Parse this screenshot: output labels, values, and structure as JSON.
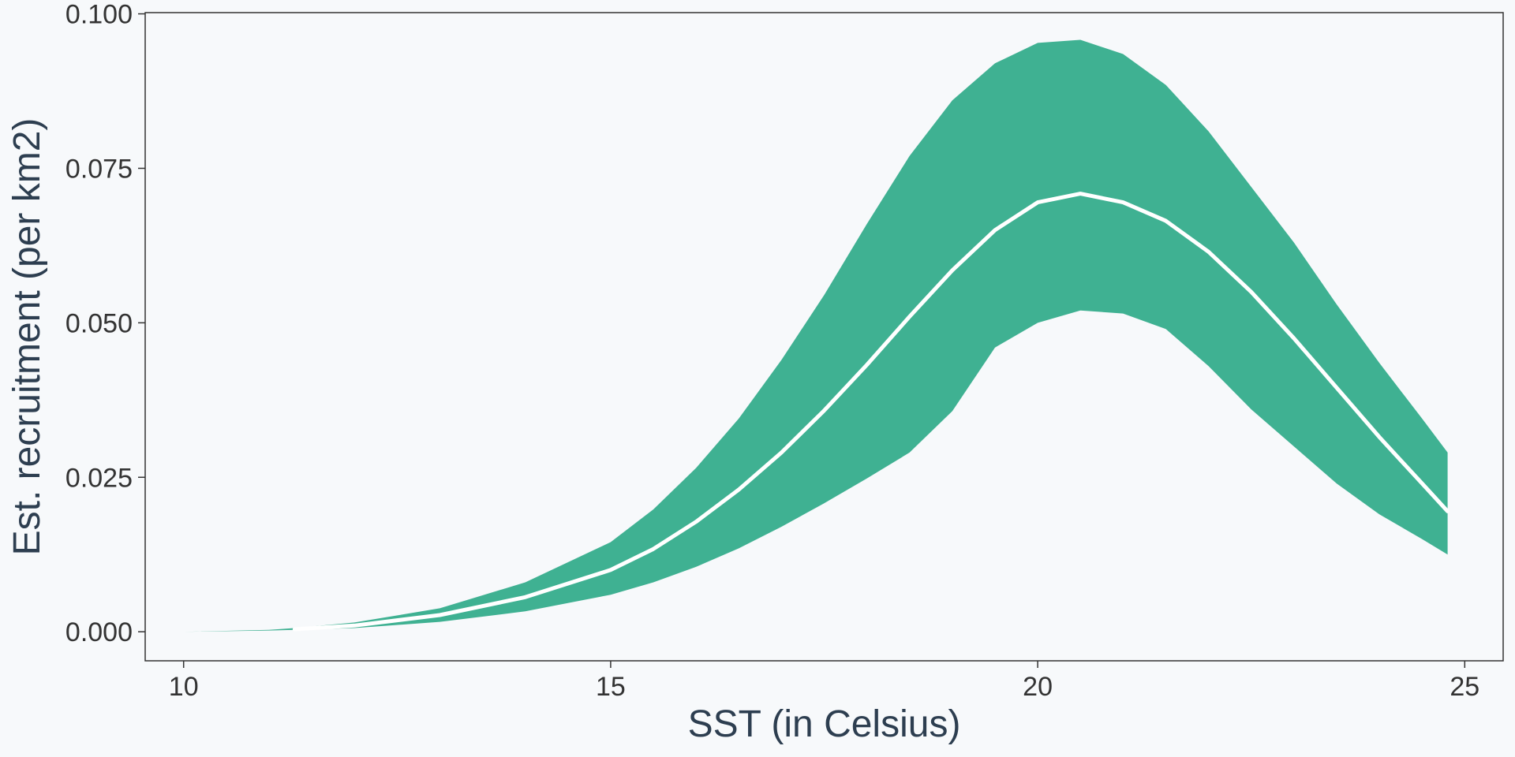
{
  "chart_data": {
    "type": "area",
    "title": "",
    "xlabel": "SST (in Celsius)",
    "ylabel": "Est. recruitment (per km2)",
    "xlim": [
      9.55,
      25.45
    ],
    "ylim": [
      -0.0047,
      0.1002
    ],
    "x_ticks": [
      {
        "value": 10,
        "label": "10"
      },
      {
        "value": 15,
        "label": "15"
      },
      {
        "value": 20,
        "label": "20"
      },
      {
        "value": 25,
        "label": "25"
      }
    ],
    "y_ticks": [
      {
        "value": 0.0,
        "label": "0.000"
      },
      {
        "value": 0.025,
        "label": "0.025"
      },
      {
        "value": 0.05,
        "label": "0.050"
      },
      {
        "value": 0.075,
        "label": "0.075"
      },
      {
        "value": 0.1,
        "label": "0.100"
      }
    ],
    "grid": false,
    "legend": "none",
    "colors": {
      "ribbon": "#3fb192",
      "line": "#ffffff",
      "frame": "#333333",
      "background": "#f7f9fb"
    },
    "series": [
      {
        "role": "ribbon",
        "x": [
          10.0,
          11.0,
          11.3,
          12.0,
          13.0,
          14.0,
          15.0,
          15.5,
          16.0,
          16.5,
          17.0,
          17.5,
          18.0,
          18.5,
          19.0,
          19.5,
          20.0,
          20.5,
          21.0,
          21.5,
          22.0,
          22.5,
          23.0,
          23.5,
          24.0,
          24.5,
          24.8
        ],
        "lower": [
          0.0,
          0.0002,
          0.0003,
          0.0006,
          0.0016,
          0.0033,
          0.006,
          0.008,
          0.0105,
          0.0135,
          0.017,
          0.0208,
          0.0248,
          0.029,
          0.0357,
          0.046,
          0.05,
          0.052,
          0.0515,
          0.049,
          0.043,
          0.036,
          0.03,
          0.024,
          0.019,
          0.015,
          0.0125
        ],
        "upper": [
          0.0,
          0.0003,
          0.0006,
          0.0015,
          0.0038,
          0.008,
          0.0145,
          0.0198,
          0.0265,
          0.0345,
          0.044,
          0.0545,
          0.066,
          0.077,
          0.086,
          0.092,
          0.0953,
          0.0958,
          0.0935,
          0.0885,
          0.081,
          0.072,
          0.063,
          0.053,
          0.0435,
          0.0345,
          0.029
        ]
      },
      {
        "role": "line",
        "x": [
          11.3,
          12.0,
          13.0,
          14.0,
          15.0,
          15.5,
          16.0,
          16.5,
          17.0,
          17.5,
          18.0,
          18.5,
          19.0,
          19.5,
          20.0,
          20.5,
          21.0,
          21.5,
          22.0,
          22.5,
          23.0,
          23.5,
          24.0,
          24.5,
          24.8
        ],
        "y": [
          0.0004,
          0.001,
          0.0027,
          0.0056,
          0.01,
          0.0134,
          0.0178,
          0.023,
          0.029,
          0.0358,
          0.0432,
          0.051,
          0.0585,
          0.065,
          0.0695,
          0.0709,
          0.0695,
          0.0665,
          0.0615,
          0.055,
          0.0475,
          0.0395,
          0.0315,
          0.024,
          0.0195
        ]
      }
    ]
  }
}
